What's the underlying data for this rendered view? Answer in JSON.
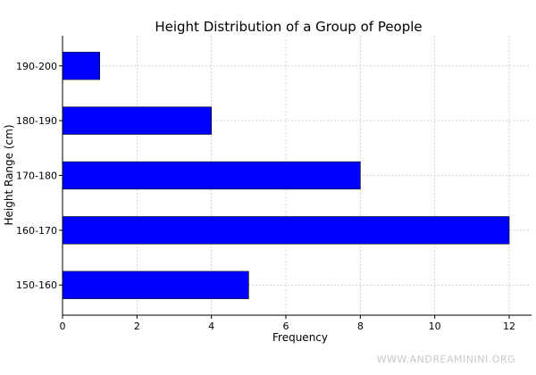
{
  "chart_data": {
    "type": "bar",
    "orientation": "horizontal",
    "title": "Height Distribution of a Group of People",
    "xlabel": "Frequency",
    "ylabel": "Height Range (cm)",
    "categories": [
      "150-160",
      "160-170",
      "170-180",
      "180-190",
      "190-200"
    ],
    "values": [
      5,
      12,
      8,
      4,
      1
    ],
    "xlim": [
      0,
      12.6
    ],
    "xticks": [
      0,
      2,
      4,
      6,
      8,
      10,
      12
    ],
    "grid": true,
    "bar_color": "#0000ff"
  },
  "watermark": "WWW.ANDREAMININI.ORG"
}
